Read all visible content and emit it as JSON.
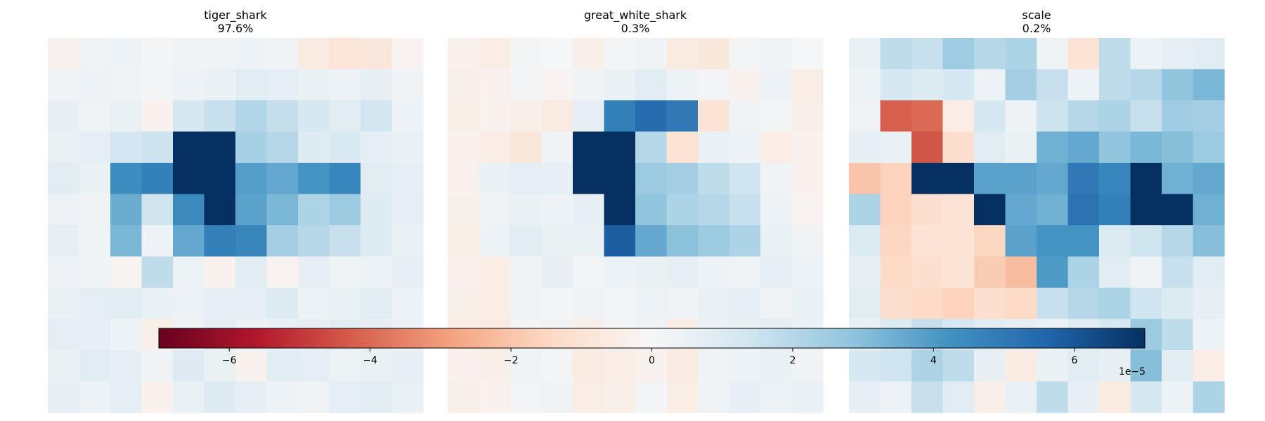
{
  "chart_data": {
    "type": "heatmap",
    "description_free": true,
    "panels": [
      {
        "label": "tiger_shark",
        "score": "97.6%",
        "cells": [
          [
            -0.3,
            0.3,
            0.4,
            0.2,
            0.3,
            0.3,
            0.4,
            0.3,
            -0.6,
            -0.9,
            -0.8,
            -0.2
          ],
          [
            0.3,
            0.4,
            0.3,
            0.2,
            0.4,
            0.5,
            0.8,
            0.7,
            0.5,
            0.4,
            0.6,
            0.3
          ],
          [
            0.6,
            0.3,
            0.5,
            -0.3,
            1.2,
            1.6,
            2.1,
            1.7,
            1.2,
            0.8,
            1.3,
            0.4
          ],
          [
            0.5,
            0.7,
            1.3,
            1.5,
            7.0,
            7.0,
            2.3,
            2.0,
            0.9,
            1.1,
            0.7,
            0.5
          ],
          [
            0.8,
            0.5,
            4.4,
            4.8,
            7.0,
            7.0,
            3.9,
            3.6,
            4.2,
            4.6,
            0.8,
            0.6
          ],
          [
            0.4,
            0.3,
            3.5,
            1.4,
            4.5,
            7.0,
            3.8,
            3.2,
            2.2,
            2.6,
            0.9,
            0.7
          ],
          [
            0.6,
            0.3,
            3.2,
            0.4,
            3.6,
            4.8,
            4.6,
            2.4,
            2.0,
            1.6,
            0.9,
            0.5
          ],
          [
            0.4,
            0.3,
            -0.2,
            1.8,
            0.4,
            -0.3,
            0.8,
            -0.2,
            0.6,
            0.3,
            0.4,
            0.6
          ],
          [
            0.5,
            0.7,
            0.8,
            0.5,
            0.4,
            0.6,
            0.7,
            0.9,
            0.4,
            0.5,
            0.8,
            0.4
          ],
          [
            0.7,
            0.6,
            0.4,
            -0.4,
            0.3,
            0.7,
            0.4,
            0.5,
            0.6,
            0.8,
            0.6,
            0.4
          ],
          [
            0.5,
            0.8,
            0.6,
            0.3,
            0.9,
            0.5,
            -0.3,
            0.8,
            0.7,
            0.4,
            0.5,
            0.6
          ],
          [
            0.6,
            0.4,
            0.7,
            -0.3,
            0.5,
            0.9,
            0.6,
            0.4,
            0.3,
            0.7,
            0.8,
            0.5
          ]
        ]
      },
      {
        "label": "great_white_shark",
        "score": "0.3%",
        "cells": [
          [
            -0.3,
            -0.5,
            0.2,
            0.1,
            -0.4,
            0.2,
            0.3,
            -0.6,
            -0.8,
            0.2,
            0.3,
            0.1
          ],
          [
            -0.4,
            -0.3,
            0.2,
            -0.2,
            0.3,
            0.5,
            0.8,
            0.4,
            0.2,
            -0.3,
            0.4,
            -0.5
          ],
          [
            -0.5,
            -0.3,
            -0.4,
            -0.6,
            0.6,
            4.8,
            5.4,
            5.0,
            -1.0,
            0.3,
            0.2,
            -0.4
          ],
          [
            -0.3,
            -0.5,
            -0.8,
            0.3,
            7.0,
            7.0,
            2.0,
            -1.0,
            0.5,
            0.4,
            -0.5,
            -0.3
          ],
          [
            -0.3,
            0.5,
            0.7,
            0.6,
            7.0,
            7.0,
            2.6,
            2.4,
            1.8,
            1.4,
            0.3,
            -0.3
          ],
          [
            -0.4,
            0.3,
            0.5,
            0.4,
            0.6,
            7.0,
            2.8,
            2.2,
            2.0,
            1.6,
            0.4,
            -0.2
          ],
          [
            -0.5,
            0.4,
            0.8,
            0.5,
            0.5,
            5.8,
            3.6,
            2.9,
            2.6,
            2.2,
            0.5,
            0.3
          ],
          [
            -0.3,
            -0.5,
            0.3,
            0.6,
            0.2,
            0.4,
            0.5,
            0.6,
            0.4,
            0.3,
            0.6,
            0.4
          ],
          [
            -0.4,
            -0.5,
            0.3,
            0.2,
            0.3,
            0.2,
            0.4,
            0.3,
            0.5,
            0.6,
            0.3,
            0.5
          ],
          [
            -0.5,
            -0.6,
            0.2,
            0.3,
            -0.4,
            0.2,
            0.3,
            -0.5,
            0.4,
            0.5,
            0.6,
            0.4
          ],
          [
            -0.3,
            -0.4,
            0.3,
            0.2,
            -0.6,
            -0.5,
            -0.3,
            -0.6,
            0.3,
            0.4,
            0.5,
            0.3
          ],
          [
            -0.4,
            -0.3,
            0.2,
            0.3,
            -0.5,
            -0.4,
            0.2,
            -0.5,
            0.3,
            0.6,
            0.4,
            0.5
          ]
        ]
      },
      {
        "label": "scale",
        "score": "0.2%",
        "cells": [
          [
            0.5,
            1.8,
            1.6,
            2.5,
            2.0,
            2.2,
            0.3,
            -1.0,
            1.8,
            0.4,
            0.6,
            0.8
          ],
          [
            0.4,
            1.2,
            1.0,
            1.2,
            0.4,
            2.4,
            1.6,
            0.4,
            1.8,
            2.0,
            2.8,
            3.2
          ],
          [
            0.3,
            -4.2,
            -4.0,
            -0.5,
            1.2,
            0.4,
            1.5,
            2.0,
            2.2,
            1.6,
            2.5,
            2.4
          ],
          [
            0.6,
            0.5,
            -4.4,
            -1.2,
            0.8,
            0.5,
            3.4,
            3.6,
            2.8,
            3.2,
            3.0,
            2.6
          ],
          [
            -2.0,
            -1.6,
            7.0,
            7.0,
            3.8,
            3.8,
            3.6,
            5.0,
            4.6,
            7.0,
            3.4,
            3.6
          ],
          [
            2.2,
            -1.6,
            -1.2,
            -1.0,
            7.0,
            3.6,
            3.4,
            5.2,
            4.8,
            7.0,
            7.0,
            3.4
          ],
          [
            1.0,
            -1.5,
            -1.0,
            -1.0,
            -1.5,
            3.8,
            4.2,
            4.2,
            1.0,
            1.4,
            2.0,
            3.0
          ],
          [
            0.6,
            -1.4,
            -1.2,
            -1.0,
            -1.8,
            -2.2,
            4.0,
            2.2,
            0.8,
            0.3,
            1.6,
            0.8
          ],
          [
            0.8,
            -1.2,
            -1.4,
            -1.6,
            -1.2,
            -1.4,
            1.6,
            2.0,
            2.2,
            1.4,
            1.0,
            0.6
          ],
          [
            0.5,
            1.0,
            1.6,
            1.2,
            0.8,
            0.6,
            0.4,
            0.8,
            1.2,
            2.6,
            1.8,
            0.4
          ],
          [
            1.2,
            1.4,
            2.2,
            1.8,
            0.6,
            -0.6,
            0.5,
            0.8,
            0.6,
            3.0,
            0.8,
            -0.5
          ],
          [
            0.6,
            0.4,
            1.6,
            0.8,
            -0.4,
            0.5,
            1.8,
            0.6,
            -0.6,
            1.2,
            0.4,
            2.2
          ]
        ]
      }
    ],
    "colorbar": {
      "colormap": "RdBu",
      "range": [
        -7,
        7
      ],
      "ticks": [
        -6,
        -4,
        -2,
        0,
        2,
        4,
        6
      ],
      "tick_labels": [
        "−6",
        "−4",
        "−2",
        "0",
        "2",
        "4",
        "6"
      ],
      "offset_label": "1e−5",
      "orientation": "horizontal"
    }
  }
}
